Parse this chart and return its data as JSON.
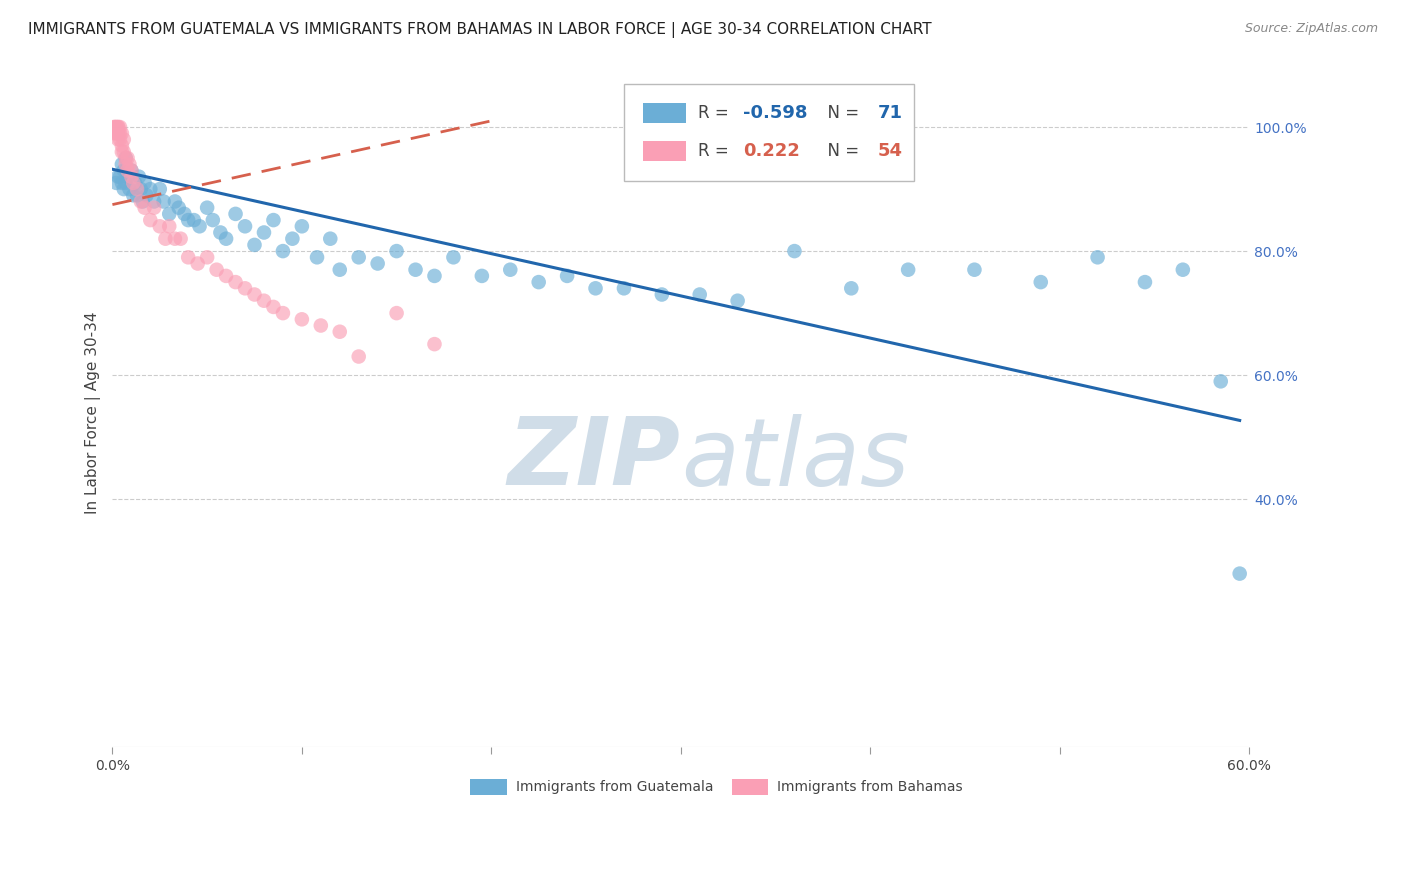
{
  "title": "IMMIGRANTS FROM GUATEMALA VS IMMIGRANTS FROM BAHAMAS IN LABOR FORCE | AGE 30-34 CORRELATION CHART",
  "source": "Source: ZipAtlas.com",
  "xlabel_bottom": [
    "Immigrants from Guatemala",
    "Immigrants from Bahamas"
  ],
  "ylabel": "In Labor Force | Age 30-34",
  "xlim": [
    0.0,
    0.6
  ],
  "ylim": [
    0.0,
    1.08
  ],
  "x_ticks": [
    0.0,
    0.1,
    0.2,
    0.3,
    0.4,
    0.5,
    0.6
  ],
  "x_tick_labels": [
    "0.0%",
    "",
    "",
    "",
    "",
    "",
    "60.0%"
  ],
  "y_ticks_right": [
    1.0,
    0.8,
    0.6,
    0.4
  ],
  "y_tick_labels_right": [
    "100.0%",
    "80.0%",
    "60.0%",
    "40.0%"
  ],
  "legend_blue_R": "-0.598",
  "legend_blue_N": "71",
  "legend_pink_R": "0.222",
  "legend_pink_N": "54",
  "blue_color": "#6baed6",
  "pink_color": "#fa9fb5",
  "blue_line_color": "#2166ac",
  "pink_line_color": "#d6604d",
  "watermark_color": "#d0dde8",
  "blue_scatter_x": [
    0.002,
    0.003,
    0.004,
    0.005,
    0.005,
    0.006,
    0.006,
    0.007,
    0.007,
    0.008,
    0.009,
    0.01,
    0.011,
    0.012,
    0.013,
    0.014,
    0.015,
    0.016,
    0.017,
    0.018,
    0.02,
    0.022,
    0.025,
    0.027,
    0.03,
    0.033,
    0.035,
    0.038,
    0.04,
    0.043,
    0.046,
    0.05,
    0.053,
    0.057,
    0.06,
    0.065,
    0.07,
    0.075,
    0.08,
    0.085,
    0.09,
    0.095,
    0.1,
    0.108,
    0.115,
    0.12,
    0.13,
    0.14,
    0.15,
    0.16,
    0.17,
    0.18,
    0.195,
    0.21,
    0.225,
    0.24,
    0.255,
    0.27,
    0.29,
    0.31,
    0.33,
    0.36,
    0.39,
    0.42,
    0.455,
    0.49,
    0.52,
    0.545,
    0.565,
    0.585,
    0.595
  ],
  "blue_scatter_y": [
    0.91,
    0.92,
    0.92,
    0.94,
    0.91,
    0.93,
    0.9,
    0.91,
    0.95,
    0.92,
    0.9,
    0.93,
    0.89,
    0.91,
    0.89,
    0.92,
    0.9,
    0.88,
    0.91,
    0.89,
    0.9,
    0.88,
    0.9,
    0.88,
    0.86,
    0.88,
    0.87,
    0.86,
    0.85,
    0.85,
    0.84,
    0.87,
    0.85,
    0.83,
    0.82,
    0.86,
    0.84,
    0.81,
    0.83,
    0.85,
    0.8,
    0.82,
    0.84,
    0.79,
    0.82,
    0.77,
    0.79,
    0.78,
    0.8,
    0.77,
    0.76,
    0.79,
    0.76,
    0.77,
    0.75,
    0.76,
    0.74,
    0.74,
    0.73,
    0.73,
    0.72,
    0.8,
    0.74,
    0.77,
    0.77,
    0.75,
    0.79,
    0.75,
    0.77,
    0.59,
    0.28
  ],
  "pink_scatter_x": [
    0.001,
    0.001,
    0.001,
    0.002,
    0.002,
    0.002,
    0.003,
    0.003,
    0.003,
    0.003,
    0.003,
    0.004,
    0.004,
    0.004,
    0.005,
    0.005,
    0.005,
    0.006,
    0.006,
    0.007,
    0.007,
    0.008,
    0.008,
    0.009,
    0.01,
    0.01,
    0.011,
    0.013,
    0.015,
    0.017,
    0.02,
    0.022,
    0.025,
    0.028,
    0.03,
    0.033,
    0.036,
    0.04,
    0.045,
    0.05,
    0.055,
    0.06,
    0.065,
    0.07,
    0.075,
    0.08,
    0.085,
    0.09,
    0.1,
    0.11,
    0.12,
    0.13,
    0.15,
    0.17
  ],
  "pink_scatter_y": [
    1.0,
    1.0,
    0.99,
    1.0,
    0.99,
    1.0,
    1.0,
    0.99,
    1.0,
    0.99,
    0.98,
    1.0,
    0.99,
    0.98,
    0.99,
    0.97,
    0.96,
    0.98,
    0.96,
    0.95,
    0.94,
    0.95,
    0.93,
    0.94,
    0.93,
    0.92,
    0.91,
    0.9,
    0.88,
    0.87,
    0.85,
    0.87,
    0.84,
    0.82,
    0.84,
    0.82,
    0.82,
    0.79,
    0.78,
    0.79,
    0.77,
    0.76,
    0.75,
    0.74,
    0.73,
    0.72,
    0.71,
    0.7,
    0.69,
    0.68,
    0.67,
    0.63,
    0.7,
    0.65
  ],
  "blue_trendline_x": [
    0.0,
    0.595
  ],
  "blue_trendline_y": [
    0.932,
    0.527
  ],
  "pink_trendline_x": [
    0.0,
    0.2
  ],
  "pink_trendline_y": [
    0.875,
    1.01
  ],
  "background_color": "#ffffff",
  "grid_color": "#cccccc",
  "axis_color": "#4472c4",
  "title_fontsize": 11,
  "source_fontsize": 9
}
